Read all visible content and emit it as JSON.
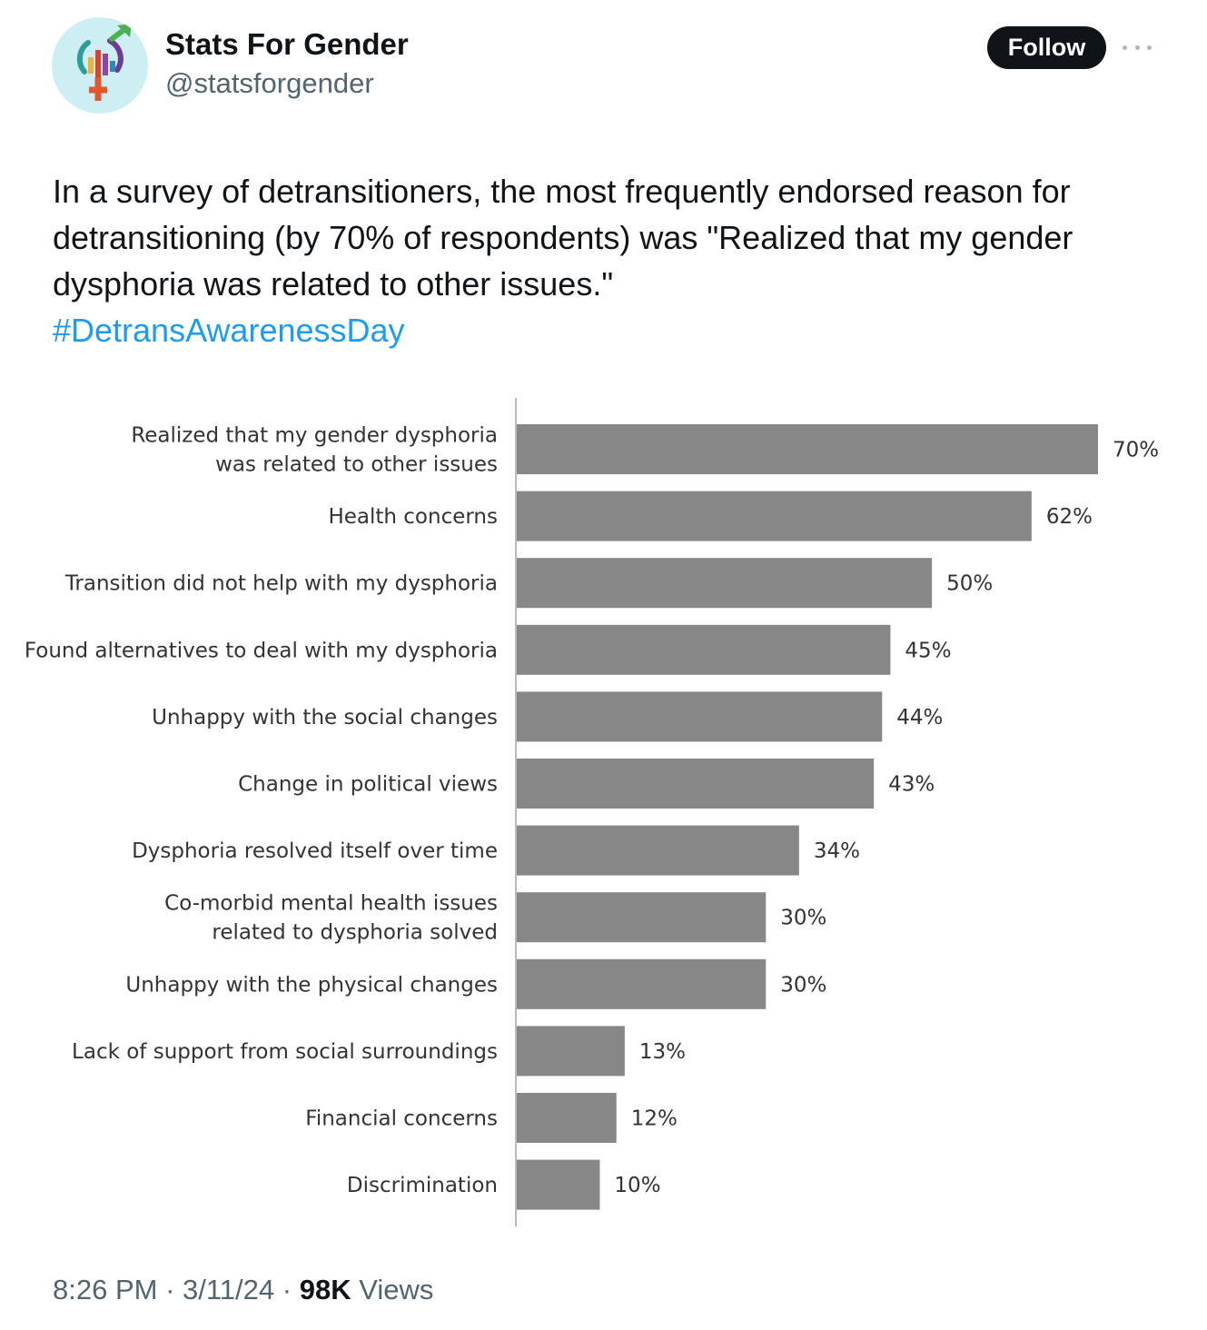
{
  "account": {
    "display_name": "Stats For Gender",
    "handle": "@statsforgender",
    "avatar_icon": "gender-symbols-bar-chart-logo",
    "avatar_bg": "#cdeef3"
  },
  "actions": {
    "follow_label": "Follow",
    "more_icon": "more-horizontal-icon"
  },
  "tweet": {
    "text": "In a survey of detransitioners, the most frequently endorsed reason for detransitioning (by 70% of respondents) was \"Realized that my gender dysphoria was related to other issues.\"",
    "hashtag": "#DetransAwarenessDay"
  },
  "meta": {
    "time": "8:26 PM",
    "date": "3/11/24",
    "sep": " · ",
    "views_count": "98K",
    "views_label": "Views"
  },
  "colors": {
    "bar": "#878788",
    "axis": "#b8b8b8",
    "label_text": "#333333",
    "hashtag": "#1d9bf0",
    "follow_bg": "#0f1419"
  },
  "chart_data": {
    "type": "bar",
    "orientation": "horizontal",
    "title": "",
    "xlabel": "",
    "ylabel": "",
    "grid": false,
    "legend": "none",
    "xlim": [
      0,
      70
    ],
    "categories": [
      [
        "Realized that my gender dysphoria",
        "was related to other issues"
      ],
      [
        "Health concerns"
      ],
      [
        "Transition did not help with my dysphoria"
      ],
      [
        "Found alternatives to deal with my dysphoria"
      ],
      [
        "Unhappy with the social changes"
      ],
      [
        "Change in political views"
      ],
      [
        "Dysphoria resolved itself over time"
      ],
      [
        "Co-morbid mental health issues",
        "related to dysphoria solved"
      ],
      [
        "Unhappy with the physical changes"
      ],
      [
        "Lack of support from social surroundings"
      ],
      [
        "Financial concerns"
      ],
      [
        "Discrimination"
      ]
    ],
    "values": [
      70,
      62,
      50,
      45,
      44,
      43,
      34,
      30,
      30,
      13,
      12,
      10
    ],
    "value_labels": [
      "70%",
      "62%",
      "50%",
      "45%",
      "44%",
      "43%",
      "34%",
      "30%",
      "30%",
      "13%",
      "12%",
      "10%"
    ]
  }
}
